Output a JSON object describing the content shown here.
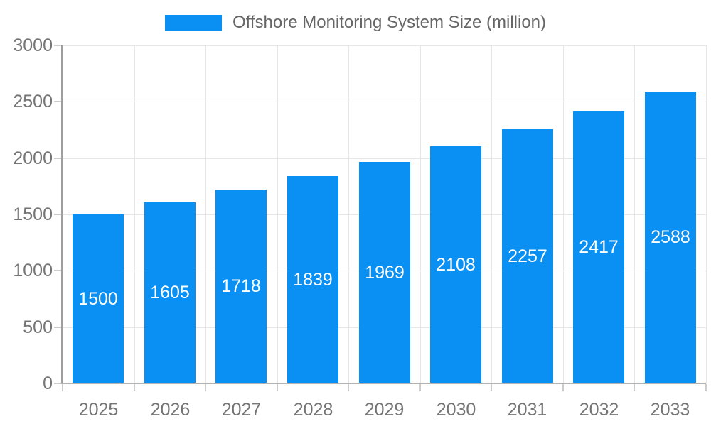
{
  "chart_data": {
    "type": "bar",
    "title": "Offshore Monitoring System Size (million)",
    "legend_label": "Offshore Monitoring System Size (million)",
    "legend_position": "top",
    "categories": [
      "2025",
      "2026",
      "2027",
      "2028",
      "2029",
      "2030",
      "2031",
      "2032",
      "2033"
    ],
    "values": [
      1500,
      1605,
      1718,
      1839,
      1969,
      2108,
      2257,
      2417,
      2588
    ],
    "xlabel": "",
    "ylabel": "",
    "ylim": [
      0,
      3000
    ],
    "y_ticks": [
      0,
      500,
      1000,
      1500,
      2000,
      2500,
      3000
    ],
    "grid": true,
    "value_labels_inside_bars": true,
    "colors": {
      "bar": "#0a8ff2",
      "grid": "#e6e6e6",
      "axis_x": "#b3b3b3",
      "axis_y": "#9e9e9e",
      "tick": "#cccccc",
      "tick_label": "#757575",
      "legend_text": "#666666",
      "value_label": "#ffffff",
      "background": "#ffffff"
    }
  }
}
